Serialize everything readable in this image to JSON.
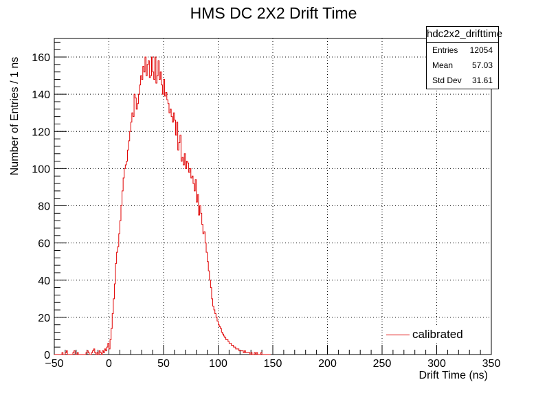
{
  "chart_data": {
    "type": "histogram",
    "title": "HMS DC 2X2 Drift Time",
    "xlabel": "Drift Time (ns)",
    "ylabel": "Number of Entries / 1 ns",
    "xlim": [
      -50,
      350
    ],
    "ylim": [
      0,
      170
    ],
    "xticks": [
      "−50",
      "0",
      "50",
      "100",
      "150",
      "200",
      "250",
      "300",
      "350"
    ],
    "yticks": [
      "0",
      "20",
      "40",
      "60",
      "80",
      "100",
      "120",
      "140",
      "160"
    ],
    "grid": true,
    "series": [
      {
        "name": "calibrated",
        "color": "#e00000",
        "bin_width": 1,
        "x_start": -50,
        "values": [
          0,
          0,
          0,
          0,
          0,
          0,
          0,
          1,
          0,
          0,
          1,
          2,
          0,
          0,
          0,
          0,
          0,
          1,
          2,
          0,
          0,
          1,
          0,
          0,
          0,
          0,
          0,
          0,
          0,
          1,
          2,
          1,
          0,
          0,
          1,
          2,
          3,
          1,
          0,
          1,
          0,
          2,
          1,
          0,
          2,
          1,
          3,
          2,
          4,
          6,
          3,
          8,
          14,
          22,
          30,
          38,
          49,
          55,
          58,
          65,
          72,
          80,
          88,
          95,
          100,
          102,
          104,
          110,
          115,
          120,
          125,
          130,
          128,
          140,
          138,
          132,
          135,
          140,
          145,
          150,
          148,
          155,
          152,
          160,
          150,
          156,
          158,
          149,
          150,
          160,
          152,
          148,
          160,
          146,
          150,
          158,
          148,
          152,
          145,
          140,
          148,
          139,
          141,
          137,
          135,
          130,
          132,
          128,
          125,
          130,
          126,
          118,
          125,
          110,
          114,
          118,
          104,
          106,
          102,
          108,
          100,
          104,
          103,
          98,
          100,
          95,
          96,
          92,
          88,
          94,
          82,
          86,
          75,
          80,
          76,
          70,
          65,
          66,
          60,
          55,
          50,
          45,
          40,
          36,
          30,
          26,
          24,
          22,
          20,
          18,
          16,
          15,
          14,
          12,
          11,
          10,
          9,
          8,
          8,
          7,
          6,
          6,
          5,
          5,
          4,
          4,
          3,
          3,
          3,
          2,
          2,
          2,
          2,
          1,
          2,
          1,
          1,
          1,
          1,
          0,
          1,
          0,
          0,
          1,
          0,
          1,
          0,
          0,
          0,
          1,
          0,
          0,
          0,
          0,
          0,
          0,
          0,
          0
        ]
      }
    ],
    "legend": "bottom-right",
    "stats": {
      "name": "hdc2x2_drifttime",
      "rows": [
        {
          "label": "Entries",
          "value": "12054"
        },
        {
          "label": "Mean",
          "value": "57.03"
        },
        {
          "label": "Std Dev",
          "value": "31.61"
        }
      ]
    }
  }
}
